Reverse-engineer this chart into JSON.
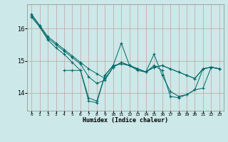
{
  "xlabel": "Humidex (Indice chaleur)",
  "background_color": "#cce8e8",
  "grid_color": "#c8a0a0",
  "line_color": "#006666",
  "xlim": [
    -0.5,
    23.5
  ],
  "ylim": [
    13.45,
    16.75
  ],
  "yticks": [
    14,
    15,
    16
  ],
  "xtick_labels": [
    "0",
    "1",
    "2",
    "3",
    "4",
    "5",
    "6",
    "7",
    "8",
    "9",
    "10",
    "11",
    "12",
    "13",
    "14",
    "15",
    "16",
    "17",
    "18",
    "19",
    "20",
    "21",
    "22",
    "23"
  ],
  "xtick_positions": [
    0,
    1,
    2,
    3,
    4,
    5,
    6,
    7,
    8,
    9,
    10,
    11,
    12,
    13,
    14,
    15,
    16,
    17,
    18,
    19,
    20,
    21,
    22,
    23
  ],
  "lines": [
    {
      "x": [
        0,
        1,
        2,
        3,
        4,
        5,
        6,
        7,
        8,
        9,
        10,
        11,
        12,
        13,
        14,
        15,
        16,
        17,
        18,
        19,
        20,
        21,
        22,
        23
      ],
      "y": [
        16.45,
        16.1,
        15.75,
        15.55,
        15.35,
        15.15,
        14.95,
        14.75,
        14.6,
        14.45,
        14.8,
        14.95,
        14.85,
        14.75,
        14.65,
        14.8,
        14.85,
        14.75,
        14.65,
        14.55,
        14.45,
        14.75,
        14.8,
        14.75
      ]
    },
    {
      "x": [
        0,
        1,
        2,
        3,
        4,
        5,
        6,
        7,
        8,
        9,
        10,
        11,
        12,
        13,
        14,
        15,
        16,
        17,
        18,
        19,
        20,
        21,
        22,
        23
      ],
      "y": [
        16.35,
        16.05,
        15.65,
        15.4,
        15.2,
        14.95,
        14.7,
        13.75,
        13.7,
        14.55,
        14.85,
        15.55,
        14.85,
        14.7,
        14.65,
        15.2,
        14.55,
        14.05,
        13.9,
        13.95,
        14.1,
        14.15,
        14.8,
        14.75
      ]
    },
    {
      "x": [
        4,
        5,
        6,
        7,
        8,
        9,
        10,
        11,
        12,
        13,
        14,
        15,
        16,
        17,
        18,
        19,
        20,
        21,
        22,
        23
      ],
      "y": [
        14.7,
        14.7,
        14.7,
        13.85,
        13.75,
        14.55,
        14.85,
        14.9,
        14.85,
        14.75,
        14.65,
        14.85,
        14.7,
        13.9,
        13.85,
        13.95,
        14.1,
        14.75,
        14.8,
        14.75
      ]
    },
    {
      "x": [
        0,
        1,
        2,
        3,
        4,
        5,
        6,
        7,
        8,
        9,
        10,
        11,
        12,
        13,
        14,
        15,
        16,
        17,
        18,
        19,
        20,
        21,
        22,
        23
      ],
      "y": [
        16.4,
        16.08,
        15.7,
        15.5,
        15.3,
        15.1,
        14.9,
        14.5,
        14.3,
        14.4,
        14.8,
        14.95,
        14.85,
        14.75,
        14.65,
        14.8,
        14.85,
        14.75,
        14.65,
        14.55,
        14.45,
        14.75,
        14.8,
        14.75
      ]
    }
  ]
}
